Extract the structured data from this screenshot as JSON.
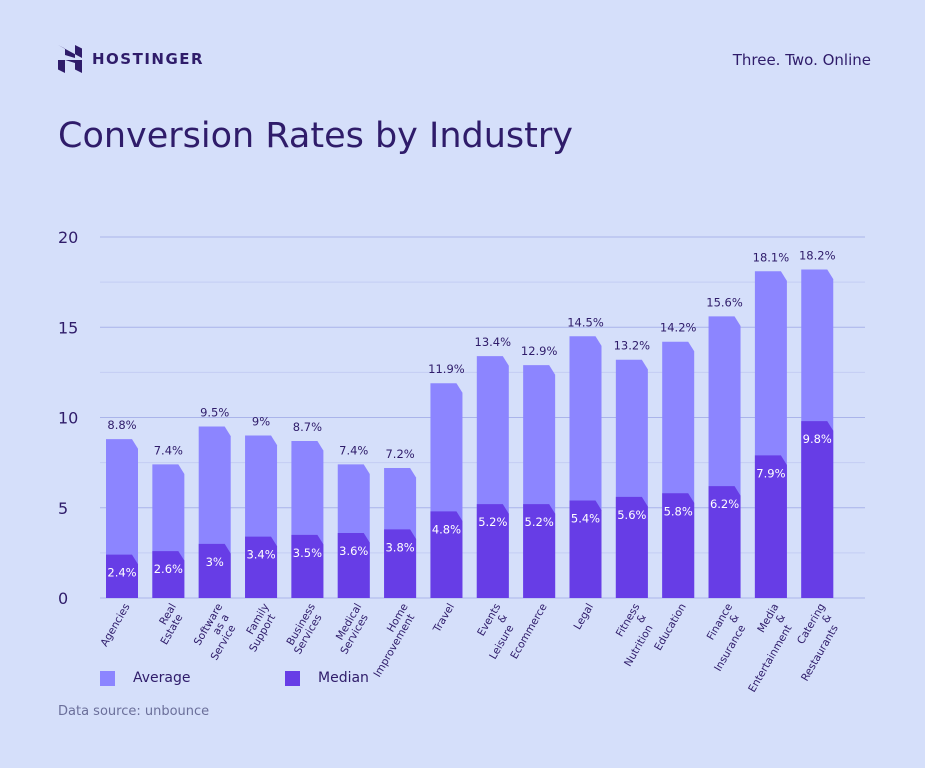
{
  "brand": {
    "name": "HOSTINGER",
    "tagline": "Three. Two. Online"
  },
  "source": "Data source: unbounce",
  "colors": {
    "background": "#d5dffa",
    "average": "#8c85ff",
    "median": "#673de6",
    "text": "#2f1c6a",
    "grid": "#aab4ea"
  },
  "chart_data": {
    "type": "bar",
    "title": "Conversion Rates by Industry",
    "xlabel": "",
    "ylabel": "",
    "ylim": [
      0,
      20
    ],
    "yticks": [
      0,
      5,
      10,
      15,
      20
    ],
    "grid": true,
    "legend": "bottom-left",
    "categories": [
      "Agencies",
      "Real Estate",
      "Software as a Service",
      "Family Support",
      "Business Services",
      "Medical Services",
      "Home Improvement",
      "Travel",
      "Events & Leisure",
      "Ecommerce",
      "Legal",
      "Fitness & Nutrition",
      "Education",
      "Finance & Insurance",
      "Media & Entertainment",
      "Catering & Restaurants"
    ],
    "series": [
      {
        "name": "Average",
        "values": [
          8.8,
          7.4,
          9.5,
          9,
          8.7,
          7.4,
          7.2,
          11.9,
          13.4,
          12.9,
          14.5,
          13.2,
          14.2,
          15.6,
          18.1,
          18.2
        ],
        "labels": [
          "8.8%",
          "7.4%",
          "9.5%",
          "9%",
          "8.7%",
          "7.4%",
          "7.2%",
          "11.9%",
          "13.4%",
          "12.9%",
          "14.5%",
          "13.2%",
          "14.2%",
          "15.6%",
          "18.1%",
          "18.2%"
        ]
      },
      {
        "name": "Median",
        "values": [
          2.4,
          2.6,
          3,
          3.4,
          3.5,
          3.6,
          3.8,
          4.8,
          5.2,
          5.2,
          5.4,
          5.6,
          5.8,
          6.2,
          7.9,
          9.8
        ],
        "labels": [
          "2.4%",
          "2.6%",
          "3%",
          "3.4%",
          "3.5%",
          "3.6%",
          "3.8%",
          "4.8%",
          "5.2%",
          "5.2%",
          "5.4%",
          "5.6%",
          "5.8%",
          "6.2%",
          "7.9%",
          "9.8%"
        ]
      }
    ]
  }
}
